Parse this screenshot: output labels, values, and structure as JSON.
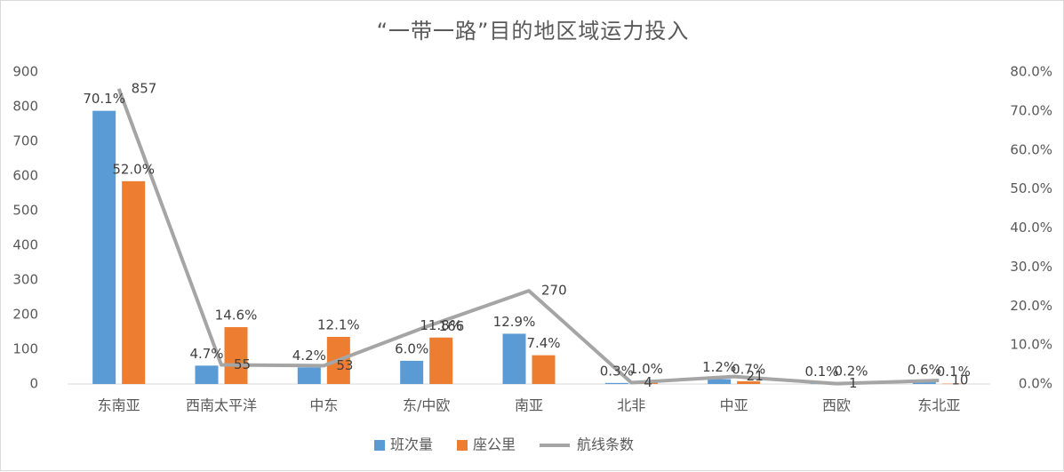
{
  "chart_data": {
    "type": "bar",
    "title": "“一带一路”目的地区域运力投入",
    "categories": [
      "东南亚",
      "西南太平洋",
      "中东",
      "东/中欧",
      "南亚",
      "北非",
      "中亚",
      "西欧",
      "东北亚"
    ],
    "left_axis": {
      "min": 0,
      "max": 900,
      "step": 100,
      "ticks": [
        "0",
        "100",
        "200",
        "300",
        "400",
        "500",
        "600",
        "700",
        "800",
        "900"
      ]
    },
    "right_axis": {
      "min": 0,
      "max": 80,
      "step": 10,
      "ticks": [
        "0.0%",
        "10.0%",
        "20.0%",
        "30.0%",
        "40.0%",
        "50.0%",
        "60.0%",
        "70.0%",
        "80.0%"
      ]
    },
    "series": [
      {
        "name": "班次量",
        "type": "bar",
        "axis": "left",
        "color": "#5B9BD5",
        "values": [
          788,
          53,
          48,
          67,
          145,
          3,
          14,
          1,
          6
        ],
        "labels": [
          "70.1%",
          "4.7%",
          "4.2%",
          "6.0%",
          "12.9%",
          "0.3%",
          "1.2%",
          "0.1%",
          "0.6%"
        ]
      },
      {
        "name": "座公里",
        "type": "bar",
        "axis": "left",
        "color": "#ED7D31",
        "values": [
          585,
          164,
          136,
          134,
          83,
          9,
          8,
          2,
          1
        ],
        "labels": [
          "52.0%",
          "14.6%",
          "12.1%",
          "11.8%",
          "7.4%",
          "1.0%",
          "0.7%",
          "0.2%",
          "0.1%"
        ]
      },
      {
        "name": "航线条数",
        "type": "line",
        "axis": "right",
        "color": "#A5A5A5",
        "values": [
          75.7,
          4.9,
          4.7,
          14.7,
          23.9,
          0.35,
          1.9,
          0.09,
          0.9
        ],
        "labels": [
          "857",
          "55",
          "53",
          "166",
          "270",
          "4",
          "21",
          "1",
          "10"
        ]
      }
    ],
    "legend": {
      "position": "bottom"
    },
    "grid": false
  }
}
